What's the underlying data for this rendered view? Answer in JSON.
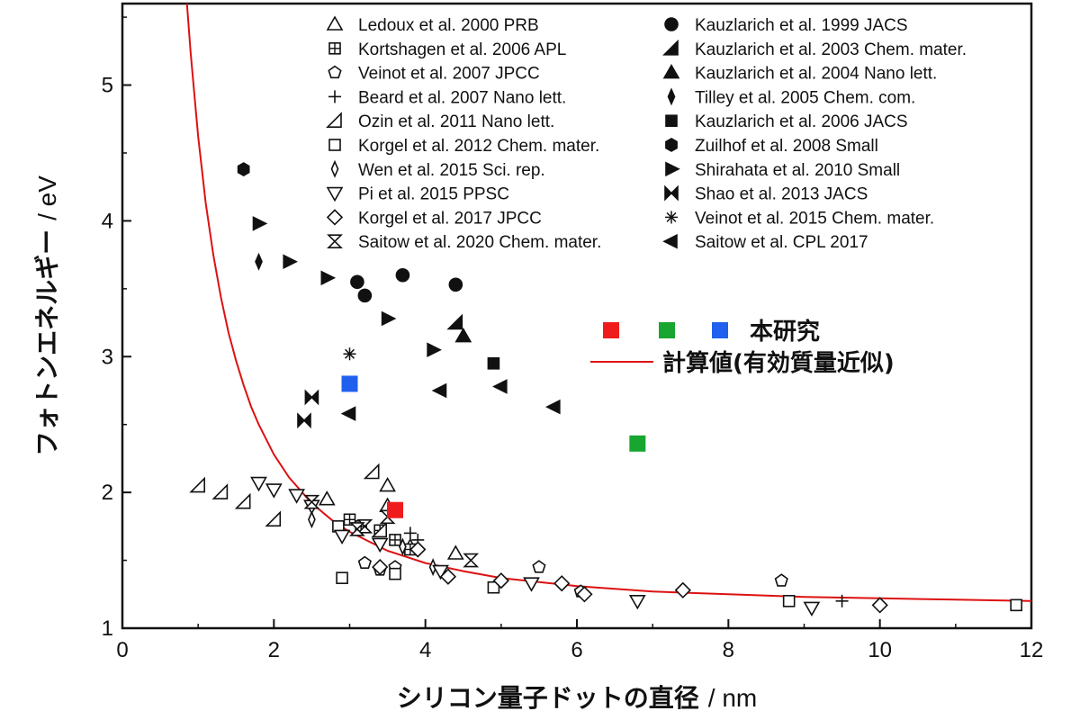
{
  "chart_data": {
    "type": "scatter",
    "xlabel": "シリコン量子ドットの直径",
    "xlabel_unit": "/ nm",
    "ylabel": "フォトンエネルギー",
    "ylabel_unit": "/ eV",
    "xlim": [
      0,
      12
    ],
    "ylim": [
      1,
      5.6
    ],
    "xticks": [
      "0",
      "2",
      "4",
      "6",
      "8",
      "10",
      "12"
    ],
    "yticks": [
      "1",
      "2",
      "3",
      "4",
      "5"
    ],
    "grid": false,
    "legend_position": "top-right",
    "series": [
      {
        "name": "Ledoux et al. 2000 PRB",
        "marker": "triangle",
        "filled": false,
        "points": [
          [
            2.7,
            1.95
          ],
          [
            3.5,
            2.05
          ],
          [
            4.4,
            1.55
          ],
          [
            3.5,
            1.9
          ],
          [
            3.8,
            1.6
          ]
        ]
      },
      {
        "name": "Kortshagen et al. 2006 APL",
        "marker": "square-plus",
        "filled": false,
        "points": [
          [
            3.0,
            1.8
          ],
          [
            3.15,
            1.75
          ],
          [
            3.4,
            1.72
          ],
          [
            3.8,
            1.58
          ],
          [
            3.6,
            1.65
          ]
        ]
      },
      {
        "name": "Veinot et al. 2007 JPCC",
        "marker": "pentagon",
        "filled": false,
        "points": [
          [
            3.2,
            1.48
          ],
          [
            3.4,
            1.43
          ],
          [
            3.6,
            1.45
          ],
          [
            5.5,
            1.45
          ],
          [
            6.05,
            1.27
          ],
          [
            8.7,
            1.35
          ]
        ]
      },
      {
        "name": "Beard et al. 2007 Nano lett.",
        "marker": "plus",
        "filled": false,
        "points": [
          [
            3.8,
            1.7
          ],
          [
            3.9,
            1.65
          ],
          [
            9.5,
            1.2
          ]
        ]
      },
      {
        "name": "Ozin et al. 2011 Nano lett.",
        "marker": "half-triangle",
        "filled": false,
        "points": [
          [
            1.0,
            2.05
          ],
          [
            1.3,
            2.0
          ],
          [
            1.6,
            1.93
          ],
          [
            2.0,
            1.8
          ],
          [
            3.4,
            1.72
          ],
          [
            3.3,
            2.15
          ]
        ]
      },
      {
        "name": "Korgel et al. 2012 Chem. mater.",
        "marker": "square",
        "filled": false,
        "points": [
          [
            2.9,
            1.37
          ],
          [
            2.85,
            1.75
          ],
          [
            3.6,
            1.4
          ],
          [
            4.9,
            1.3
          ],
          [
            8.8,
            1.2
          ],
          [
            11.8,
            1.17
          ]
        ]
      },
      {
        "name": "Wen et al. 2015 Sci. rep.",
        "marker": "thin-diamond",
        "filled": false,
        "points": [
          [
            2.5,
            1.8
          ],
          [
            3.7,
            1.6
          ],
          [
            4.1,
            1.45
          ]
        ]
      },
      {
        "name": "Pi et al. 2015 PPSC",
        "marker": "triangle-down",
        "filled": false,
        "points": [
          [
            1.8,
            2.07
          ],
          [
            2.0,
            2.02
          ],
          [
            2.3,
            1.98
          ],
          [
            2.5,
            1.9
          ],
          [
            2.9,
            1.68
          ],
          [
            3.4,
            1.62
          ],
          [
            4.2,
            1.42
          ],
          [
            5.4,
            1.33
          ],
          [
            6.8,
            1.2
          ],
          [
            9.1,
            1.15
          ]
        ]
      },
      {
        "name": "Korgel et al. 2017 JPCC",
        "marker": "diamond",
        "filled": false,
        "points": [
          [
            3.4,
            1.45
          ],
          [
            3.9,
            1.58
          ],
          [
            4.3,
            1.38
          ],
          [
            5.0,
            1.35
          ],
          [
            5.8,
            1.33
          ],
          [
            6.1,
            1.25
          ],
          [
            7.4,
            1.28
          ],
          [
            10.0,
            1.17
          ]
        ]
      },
      {
        "name": "Saitow et al. 2020 Chem. mater.",
        "marker": "bowtie-vertical",
        "filled": false,
        "points": [
          [
            2.5,
            1.93
          ],
          [
            3.2,
            1.75
          ],
          [
            3.5,
            1.82
          ],
          [
            4.6,
            1.5
          ],
          [
            3.1,
            1.73
          ]
        ]
      },
      {
        "name": "Kauzlarich et al. 1999 JACS",
        "marker": "circle",
        "filled": true,
        "points": [
          [
            3.1,
            3.55
          ],
          [
            3.2,
            3.45
          ],
          [
            3.7,
            3.6
          ],
          [
            4.4,
            3.53
          ]
        ]
      },
      {
        "name": "Kauzlarich et al. 2003 Chem. mater.",
        "marker": "half-triangle",
        "filled": true,
        "points": [
          [
            4.4,
            3.25
          ]
        ]
      },
      {
        "name": "Kauzlarich et al. 2004 Nano lett.",
        "marker": "triangle",
        "filled": true,
        "points": [
          [
            4.5,
            3.15
          ]
        ]
      },
      {
        "name": "Tilley et al. 2005 Chem. com.",
        "marker": "thin-diamond",
        "filled": true,
        "points": [
          [
            1.8,
            3.7
          ]
        ]
      },
      {
        "name": "Kauzlarich et al. 2006 JACS",
        "marker": "square",
        "filled": true,
        "points": [
          [
            4.9,
            2.95
          ]
        ]
      },
      {
        "name": "Zuilhof et al. 2008 Small",
        "marker": "hexagon",
        "filled": true,
        "points": [
          [
            1.6,
            4.38
          ]
        ]
      },
      {
        "name": "Shirahata et al. 2010 Small",
        "marker": "triangle-right",
        "filled": true,
        "points": [
          [
            1.8,
            3.98
          ],
          [
            2.2,
            3.7
          ],
          [
            2.7,
            3.58
          ],
          [
            3.5,
            3.28
          ],
          [
            4.1,
            3.05
          ]
        ]
      },
      {
        "name": "Shao et al. 2013 JACS",
        "marker": "bowtie",
        "filled": true,
        "points": [
          [
            2.4,
            2.53
          ],
          [
            2.5,
            2.7
          ]
        ]
      },
      {
        "name": "Veinot et al. 2015 Chem. mater.",
        "marker": "asterisk",
        "filled": false,
        "points": [
          [
            3.0,
            3.02
          ]
        ]
      },
      {
        "name": "Saitow et al. CPL 2017",
        "marker": "triangle-left",
        "filled": true,
        "points": [
          [
            3.0,
            2.58
          ],
          [
            4.2,
            2.75
          ],
          [
            5.0,
            2.78
          ],
          [
            5.7,
            2.63
          ]
        ]
      }
    ],
    "this_work": {
      "label": "本研究",
      "points": [
        {
          "x": 3.6,
          "y": 1.87,
          "color": "#ee1c1c"
        },
        {
          "x": 6.8,
          "y": 2.36,
          "color": "#18a530"
        },
        {
          "x": 3.0,
          "y": 2.8,
          "color": "#2160ee"
        }
      ],
      "legend_colors": [
        "#ee1c1c",
        "#18a530",
        "#2160ee"
      ]
    },
    "curve": {
      "label": "計算値(有効質量近似)",
      "color": "#dd1111",
      "points": [
        [
          0.85,
          5.62
        ],
        [
          0.9,
          5.24
        ],
        [
          1.0,
          4.62
        ],
        [
          1.1,
          4.13
        ],
        [
          1.2,
          3.75
        ],
        [
          1.3,
          3.44
        ],
        [
          1.4,
          3.18
        ],
        [
          1.5,
          2.97
        ],
        [
          1.6,
          2.79
        ],
        [
          1.7,
          2.63
        ],
        [
          1.8,
          2.5
        ],
        [
          2.0,
          2.28
        ],
        [
          2.2,
          2.11
        ],
        [
          2.5,
          1.92
        ],
        [
          2.8,
          1.78
        ],
        [
          3.0,
          1.71
        ],
        [
          3.5,
          1.57
        ],
        [
          4.0,
          1.48
        ],
        [
          4.5,
          1.42
        ],
        [
          5.0,
          1.37
        ],
        [
          5.5,
          1.34
        ],
        [
          6.0,
          1.31
        ],
        [
          7.0,
          1.27
        ],
        [
          8.0,
          1.25
        ],
        [
          9.0,
          1.23
        ],
        [
          10.0,
          1.22
        ],
        [
          11.0,
          1.21
        ],
        [
          12.0,
          1.2
        ]
      ]
    }
  },
  "colors": {
    "axis": "#111111",
    "marker": "#111111"
  }
}
